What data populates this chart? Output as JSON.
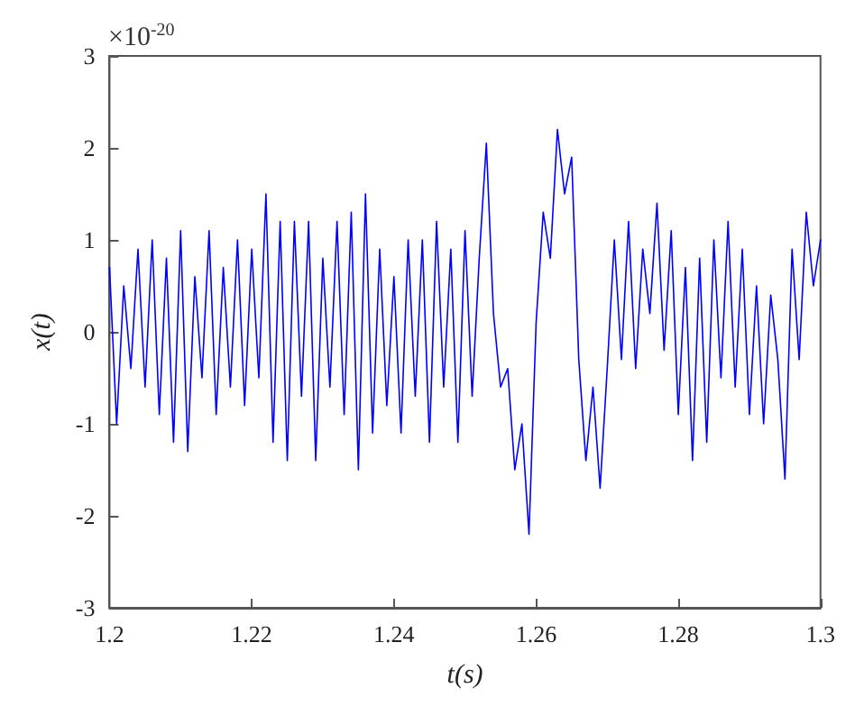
{
  "chart_data": {
    "type": "line",
    "xlabel": "t(s)",
    "ylabel": "x(t)",
    "annotations": [
      "×10$^{-20}$"
    ],
    "xlim": [
      1.2,
      1.3
    ],
    "xticks": [
      1.2,
      1.22,
      1.24,
      1.26,
      1.28,
      1.3
    ],
    "ylim": [
      -3,
      3
    ],
    "yticks": [
      -3,
      -2,
      -1,
      0,
      1,
      2,
      3
    ],
    "grid": false,
    "marker": "none",
    "line_style": "solid",
    "x": [
      1.2,
      1.201,
      1.202,
      1.203,
      1.204,
      1.205,
      1.206,
      1.207,
      1.208,
      1.209,
      1.21,
      1.211,
      1.212,
      1.213,
      1.214,
      1.215,
      1.216,
      1.217,
      1.218,
      1.219,
      1.22,
      1.221,
      1.222,
      1.223,
      1.224,
      1.225,
      1.226,
      1.227,
      1.228,
      1.229,
      1.23,
      1.231,
      1.232,
      1.233,
      1.234,
      1.235,
      1.236,
      1.237,
      1.238,
      1.239,
      1.24,
      1.241,
      1.242,
      1.243,
      1.244,
      1.245,
      1.246,
      1.247,
      1.248,
      1.249,
      1.25,
      1.251,
      1.252,
      1.253,
      1.254,
      1.255,
      1.256,
      1.257,
      1.258,
      1.259,
      1.26,
      1.261,
      1.262,
      1.263,
      1.264,
      1.265,
      1.266,
      1.267,
      1.268,
      1.269,
      1.27,
      1.271,
      1.272,
      1.273,
      1.274,
      1.275,
      1.276,
      1.277,
      1.278,
      1.279,
      1.28,
      1.281,
      1.282,
      1.283,
      1.284,
      1.285,
      1.286,
      1.287,
      1.288,
      1.289,
      1.29,
      1.291,
      1.292,
      1.293,
      1.294,
      1.295,
      1.296,
      1.297,
      1.298,
      1.299,
      1.3
    ],
    "series": [
      {
        "color": "#0000ff",
        "values": [
          0.7,
          -1.0,
          0.5,
          -0.4,
          0.9,
          -0.6,
          1.0,
          -0.9,
          0.8,
          -1.2,
          1.1,
          -1.3,
          0.6,
          -0.5,
          1.1,
          -0.9,
          0.7,
          -0.6,
          1.0,
          -0.8,
          0.9,
          -0.5,
          1.5,
          -1.2,
          1.2,
          -1.4,
          1.2,
          -0.7,
          1.2,
          -1.4,
          0.8,
          -0.6,
          1.2,
          -0.9,
          1.3,
          -1.5,
          1.5,
          -1.1,
          0.9,
          -0.8,
          0.6,
          -1.1,
          1.0,
          -0.7,
          1.0,
          -1.2,
          1.2,
          -0.6,
          0.9,
          -1.2,
          1.1,
          -0.7,
          0.8,
          2.05,
          0.2,
          -0.6,
          -0.4,
          -1.5,
          -1.0,
          -2.2,
          0.1,
          1.3,
          0.8,
          2.2,
          1.5,
          1.9,
          -0.3,
          -1.4,
          -0.6,
          -1.7,
          -0.4,
          1.0,
          -0.3,
          1.2,
          -0.4,
          0.9,
          0.2,
          1.4,
          -0.2,
          1.1,
          -0.9,
          0.7,
          -1.4,
          0.8,
          -1.2,
          1.0,
          -0.5,
          1.2,
          -0.6,
          0.9,
          -0.9,
          0.5,
          -1.0,
          0.4,
          -0.3,
          -1.6,
          0.9,
          -0.3,
          1.3,
          0.5,
          1.0
        ]
      }
    ]
  }
}
